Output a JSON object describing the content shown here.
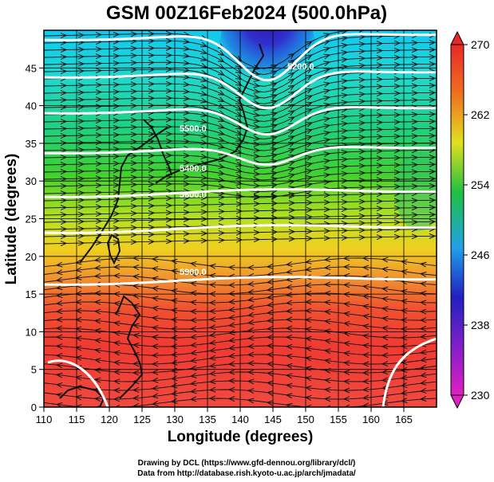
{
  "title": "GSM 00Z16Feb2024 (500.0hPa)",
  "x_axis": {
    "label": "Longitude (degrees)",
    "ticks": [
      "110",
      "115",
      "120",
      "125",
      "130",
      "135",
      "140",
      "145",
      "150",
      "155",
      "160",
      "165"
    ],
    "min": 110,
    "max": 170
  },
  "y_axis": {
    "label": "Latitude  (degrees)",
    "ticks": [
      "0",
      "5",
      "10",
      "15",
      "20",
      "25",
      "30",
      "35",
      "40",
      "45"
    ],
    "min": 0,
    "max": 50
  },
  "colorbar": {
    "ticks": [
      "230",
      "238",
      "246",
      "254",
      "262",
      "270"
    ],
    "min": 230,
    "max": 270,
    "colors": [
      "#e020c0",
      "#2020c0",
      "#20a0e8",
      "#20c040",
      "#e0e020",
      "#f07020",
      "#e82828"
    ]
  },
  "contours": {
    "labels": [
      "5200.0",
      "5400.0",
      "5500.0",
      "5600.0",
      "5700.0",
      "5900.0"
    ],
    "color": "#ffffff"
  },
  "credits": {
    "line1": "Drawing by DCL (https://www.gfd-dennou.org/library/dcl/)",
    "line2": "Data from http://database.rish.kyoto-u.ac.jp/arch/jmadata/"
  },
  "chart_data": {
    "type": "heatmap",
    "title": "GSM 00Z16Feb2024 (500.0hPa)",
    "xlabel": "Longitude (degrees)",
    "ylabel": "Latitude  (degrees)",
    "xlim": [
      110,
      170
    ],
    "ylim": [
      0,
      50
    ],
    "colorbar_range": [
      230,
      270
    ],
    "overlays": [
      "temperature shading (K)",
      "geopotential height contours",
      "wind streamlines"
    ],
    "contour_levels": [
      5200,
      5400,
      5500,
      5600,
      5700,
      5900
    ],
    "grid": true
  }
}
